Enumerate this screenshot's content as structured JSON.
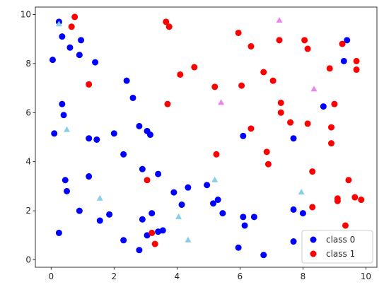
{
  "chart_data": {
    "type": "scatter",
    "title": "",
    "xlabel": "",
    "ylabel": "",
    "xlim": [
      -0.5,
      10.35
    ],
    "ylim": [
      -0.3,
      10.3
    ],
    "xticks": [
      0,
      2,
      4,
      6,
      8,
      10
    ],
    "yticks": [
      0,
      2,
      4,
      6,
      8,
      10
    ],
    "grid": false,
    "legend_position": "lower-right",
    "series": [
      {
        "name": "class 0",
        "color": "#0000ff",
        "marker": "circle",
        "points": [
          [
            0.05,
            8.15
          ],
          [
            0.1,
            5.15
          ],
          [
            0.25,
            9.7
          ],
          [
            0.25,
            1.1
          ],
          [
            0.35,
            9.1
          ],
          [
            0.35,
            6.35
          ],
          [
            0.4,
            5.9
          ],
          [
            0.45,
            3.25
          ],
          [
            0.5,
            2.8
          ],
          [
            0.6,
            8.65
          ],
          [
            0.9,
            8.35
          ],
          [
            0.9,
            2.0
          ],
          [
            0.95,
            8.95
          ],
          [
            1.2,
            4.95
          ],
          [
            1.2,
            3.4
          ],
          [
            1.4,
            8.05
          ],
          [
            1.45,
            4.9
          ],
          [
            1.55,
            1.6
          ],
          [
            1.85,
            1.85
          ],
          [
            2.0,
            5.15
          ],
          [
            2.3,
            4.3
          ],
          [
            2.3,
            0.8
          ],
          [
            2.4,
            7.3
          ],
          [
            2.6,
            6.6
          ],
          [
            2.8,
            5.45
          ],
          [
            2.8,
            0.4
          ],
          [
            2.9,
            1.65
          ],
          [
            2.9,
            3.7
          ],
          [
            3.05,
            1.0
          ],
          [
            3.05,
            5.25
          ],
          [
            3.15,
            5.1
          ],
          [
            3.2,
            1.9
          ],
          [
            3.4,
            1.15
          ],
          [
            3.4,
            3.5
          ],
          [
            3.55,
            1.2
          ],
          [
            3.9,
            2.75
          ],
          [
            4.15,
            2.25
          ],
          [
            4.35,
            2.95
          ],
          [
            4.95,
            3.05
          ],
          [
            5.15,
            2.3
          ],
          [
            5.3,
            2.45
          ],
          [
            5.45,
            1.9
          ],
          [
            5.95,
            0.5
          ],
          [
            6.1,
            5.05
          ],
          [
            6.1,
            1.75
          ],
          [
            6.15,
            1.4
          ],
          [
            6.45,
            1.75
          ],
          [
            6.75,
            0.2
          ],
          [
            7.7,
            4.95
          ],
          [
            7.7,
            2.05
          ],
          [
            7.7,
            0.75
          ],
          [
            8.0,
            1.9
          ],
          [
            8.65,
            6.25
          ],
          [
            9.3,
            8.1
          ],
          [
            9.4,
            8.95
          ]
        ]
      },
      {
        "name": "class 1",
        "color": "#ff0000",
        "marker": "circle",
        "points": [
          [
            0.65,
            9.5
          ],
          [
            0.75,
            9.9
          ],
          [
            1.2,
            7.15
          ],
          [
            3.05,
            3.25
          ],
          [
            3.2,
            1.1
          ],
          [
            3.3,
            0.65
          ],
          [
            3.65,
            9.7
          ],
          [
            3.7,
            6.35
          ],
          [
            3.75,
            9.5
          ],
          [
            4.1,
            7.55
          ],
          [
            4.55,
            7.85
          ],
          [
            5.2,
            7.05
          ],
          [
            5.25,
            4.3
          ],
          [
            5.95,
            9.25
          ],
          [
            6.05,
            7.1
          ],
          [
            6.35,
            8.7
          ],
          [
            6.35,
            5.35
          ],
          [
            6.75,
            7.65
          ],
          [
            6.85,
            4.4
          ],
          [
            6.9,
            3.9
          ],
          [
            7.05,
            7.3
          ],
          [
            7.25,
            8.95
          ],
          [
            7.3,
            6.4
          ],
          [
            7.3,
            6.0
          ],
          [
            7.6,
            5.6
          ],
          [
            8.05,
            8.95
          ],
          [
            8.15,
            8.6
          ],
          [
            8.15,
            5.55
          ],
          [
            8.3,
            3.6
          ],
          [
            8.3,
            2.15
          ],
          [
            8.85,
            7.8
          ],
          [
            8.9,
            5.4
          ],
          [
            8.9,
            4.75
          ],
          [
            9.0,
            6.35
          ],
          [
            9.1,
            2.5
          ],
          [
            9.1,
            2.4
          ],
          [
            9.25,
            8.8
          ],
          [
            9.35,
            1.4
          ],
          [
            9.45,
            3.25
          ],
          [
            9.65,
            2.55
          ],
          [
            9.7,
            8.1
          ],
          [
            9.7,
            7.75
          ],
          [
            9.85,
            2.45
          ]
        ]
      },
      {
        "name": "",
        "color": "#87ceeb",
        "marker": "triangle",
        "points": [
          [
            0.25,
            9.6
          ],
          [
            0.5,
            5.3
          ],
          [
            1.55,
            2.5
          ],
          [
            4.05,
            1.75
          ],
          [
            4.35,
            0.8
          ],
          [
            5.2,
            3.25
          ],
          [
            7.95,
            2.75
          ]
        ]
      },
      {
        "name": "",
        "color": "#ee82ee",
        "marker": "triangle",
        "points": [
          [
            5.4,
            6.4
          ],
          [
            7.25,
            9.75
          ],
          [
            8.35,
            6.95
          ]
        ]
      }
    ],
    "legend": [
      {
        "label": "class 0",
        "color": "#0000ff"
      },
      {
        "label": "class 1",
        "color": "#ff0000"
      }
    ]
  }
}
